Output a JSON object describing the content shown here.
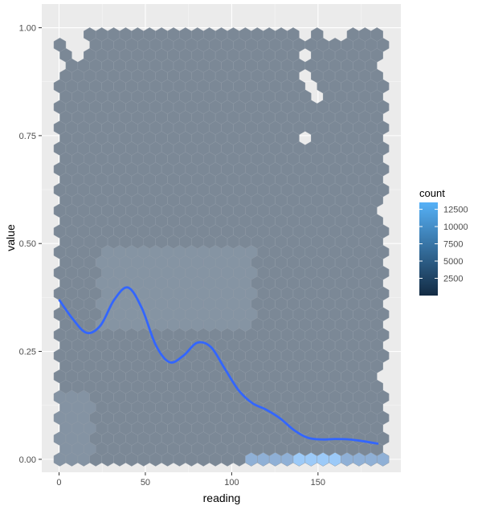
{
  "chart_data": {
    "type": "hexbin",
    "xlabel": "reading",
    "ylabel": "value",
    "xlim": [
      -10,
      198
    ],
    "ylim": [
      -0.03,
      1.055
    ],
    "x_ticks": [
      0,
      50,
      100,
      150
    ],
    "x_tick_labels": [
      "0",
      "50",
      "100",
      "150"
    ],
    "y_ticks": [
      0,
      0.25,
      0.5,
      0.75,
      1.0
    ],
    "y_tick_labels": [
      "0.00",
      "0.25",
      "0.50",
      "0.75",
      "1.00"
    ],
    "grid": true,
    "hex_area": {
      "x_range": [
        0,
        190
      ],
      "y_range": [
        0,
        1.0
      ],
      "empty_cells": [
        [
          5,
          0.99
        ],
        [
          12,
          0.97
        ],
        [
          10,
          0.95
        ],
        [
          140,
          0.98
        ],
        [
          142,
          0.93
        ],
        [
          143,
          0.9
        ],
        [
          160,
          0.98
        ],
        [
          148,
          0.86
        ],
        [
          151,
          0.84
        ],
        [
          144,
          0.75
        ],
        [
          186,
          0.58
        ],
        [
          2,
          0.92
        ],
        [
          190,
          0.92
        ],
        [
          192,
          0.85
        ],
        [
          0,
          0.03
        ],
        [
          186,
          0.2
        ]
      ]
    },
    "smooth_line": {
      "name": "",
      "x": [
        0,
        8,
        16,
        24,
        32,
        40,
        48,
        56,
        64,
        72,
        80,
        88,
        96,
        104,
        112,
        120,
        128,
        136,
        144,
        152,
        160,
        168,
        176,
        185
      ],
      "y": [
        0.37,
        0.325,
        0.293,
        0.31,
        0.37,
        0.398,
        0.35,
        0.265,
        0.225,
        0.24,
        0.27,
        0.26,
        0.21,
        0.16,
        0.13,
        0.115,
        0.095,
        0.068,
        0.05,
        0.046,
        0.047,
        0.046,
        0.042,
        0.036
      ],
      "color": "#3366ff"
    },
    "legend": {
      "title": "count",
      "placement": "right",
      "min": 0,
      "max": 13500,
      "ticks": [
        2500,
        5000,
        7500,
        10000,
        12500
      ],
      "tick_labels": [
        "2500",
        "5000",
        "7500",
        "10000",
        "12500"
      ],
      "low_color": "#132b43",
      "high_color": "#56b1f7"
    },
    "colors": {
      "panel_background": "#ebebeb",
      "grid_major": "#ffffff",
      "hex_fill": "#7b8896",
      "hex_edge": "#8f9aa6",
      "hex_light": "#8fb0d6",
      "hex_bright": "#9ccaf8"
    }
  }
}
